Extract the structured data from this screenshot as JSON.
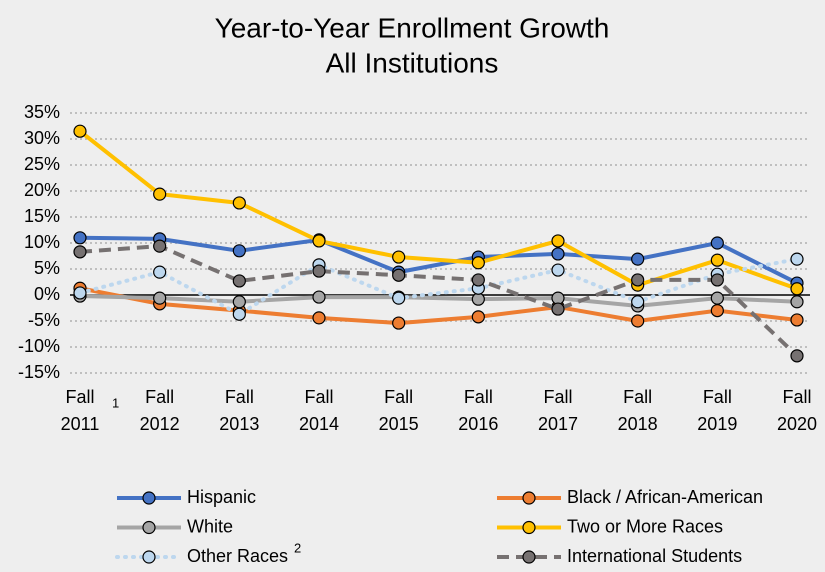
{
  "chart_data": {
    "type": "line",
    "title": [
      "Year-to-Year Enrollment Growth",
      "All Institutions"
    ],
    "categories": [
      "Fall 2011",
      "Fall 2012",
      "Fall 2013",
      "Fall 2014",
      "Fall 2015",
      "Fall 2016",
      "Fall 2017",
      "Fall 2018",
      "Fall 2019",
      "Fall 2020"
    ],
    "annotations": [
      "1",
      "2"
    ],
    "ylim": [
      -15,
      35
    ],
    "yticks": [
      {
        "value": -15,
        "label": "-15%"
      },
      {
        "value": -10,
        "label": "-10%"
      },
      {
        "value": -5,
        "label": "-5%"
      },
      {
        "value": 0,
        "label": "0%"
      },
      {
        "value": 5,
        "label": "5%"
      },
      {
        "value": 10,
        "label": "10%"
      },
      {
        "value": 15,
        "label": "15%"
      },
      {
        "value": 20,
        "label": "20%"
      },
      {
        "value": 25,
        "label": "25%"
      },
      {
        "value": 30,
        "label": "30%"
      },
      {
        "value": 35,
        "label": "35%"
      }
    ],
    "grid": true,
    "legend": "bottom",
    "series": [
      {
        "name": "Hispanic",
        "color": "#4472c4",
        "line_style": "solid",
        "values": [
          11,
          10.8,
          8.5,
          10.6,
          4.4,
          7.3,
          7.9,
          6.9,
          10,
          2.3
        ]
      },
      {
        "name": "Black / African-American",
        "color": "#ed7d31",
        "line_style": "solid",
        "values": [
          1.3,
          -1.7,
          -3,
          -4.4,
          -5.4,
          -4.2,
          -2.3,
          -5,
          -3,
          -4.8
        ]
      },
      {
        "name": "White",
        "color": "#a5a5a5",
        "line_style": "solid",
        "values": [
          -0.2,
          -0.6,
          -1.3,
          -0.4,
          -0.4,
          -0.8,
          -0.6,
          -2.1,
          -0.6,
          -1.3
        ]
      },
      {
        "name": "Two or More Races",
        "color": "#ffc000",
        "line_style": "solid",
        "values": [
          31.5,
          19.4,
          17.7,
          10.4,
          7.3,
          6.2,
          10.4,
          1.9,
          6.7,
          1.2
        ]
      },
      {
        "name": "Other Races",
        "color": "#bdd7ee",
        "line_style": "dotted",
        "values": [
          0.4,
          4.4,
          -3.7,
          5.8,
          -0.6,
          1.3,
          4.8,
          -1.3,
          4,
          6.9
        ]
      },
      {
        "name": "International Students",
        "color": "#767171",
        "line_style": "dashed",
        "values": [
          8.3,
          9.4,
          2.7,
          4.6,
          3.8,
          2.9,
          -2.7,
          2.9,
          2.9,
          -11.7
        ]
      }
    ]
  }
}
